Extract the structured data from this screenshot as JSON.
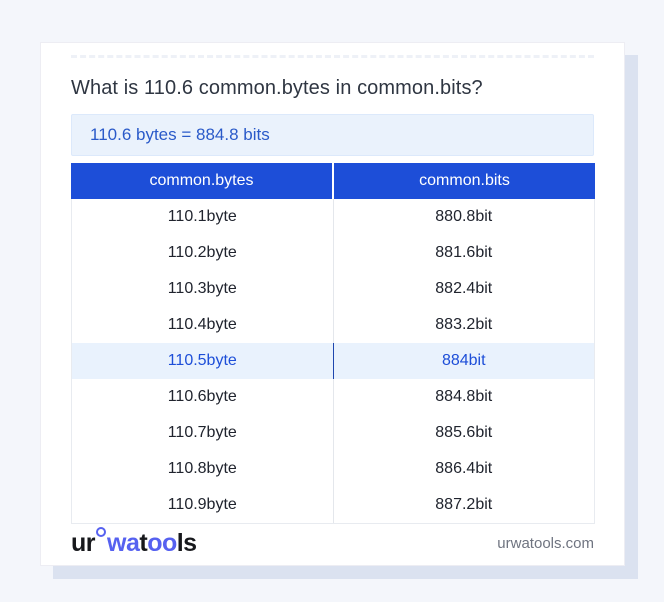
{
  "page": {
    "question": "What is 110.6 common.bytes in common.bits?",
    "result": "110.6 bytes = 884.8 bits"
  },
  "table": {
    "headers": [
      "common.bytes",
      "common.bits"
    ],
    "rows": [
      {
        "bytes": "110.1byte",
        "bits": "880.8bit",
        "highlighted": false
      },
      {
        "bytes": "110.2byte",
        "bits": "881.6bit",
        "highlighted": false
      },
      {
        "bytes": "110.3byte",
        "bits": "882.4bit",
        "highlighted": false
      },
      {
        "bytes": "110.4byte",
        "bits": "883.2bit",
        "highlighted": false
      },
      {
        "bytes": "110.5byte",
        "bits": "884bit",
        "highlighted": true
      },
      {
        "bytes": "110.6byte",
        "bits": "884.8bit",
        "highlighted": false
      },
      {
        "bytes": "110.7byte",
        "bits": "885.6bit",
        "highlighted": false
      },
      {
        "bytes": "110.8byte",
        "bits": "886.4bit",
        "highlighted": false
      },
      {
        "bytes": "110.9byte",
        "bits": "887.2bit",
        "highlighted": false
      }
    ]
  },
  "footer": {
    "logo": {
      "part1": "ur",
      "part2": "wa",
      "part3": "t",
      "part4": "oo",
      "part5": "ls"
    },
    "site": "urwatools.com"
  },
  "colors": {
    "header_blue": "#1d4ed8",
    "highlight_bg": "#e9f2fd",
    "highlight_text": "#1d4ed8",
    "result_bg": "#eaf2fc",
    "result_text": "#2a5ac9",
    "logo_blue": "#5661f0",
    "card_shadow": "#dbe2f0",
    "page_bg": "#f4f6fb"
  }
}
